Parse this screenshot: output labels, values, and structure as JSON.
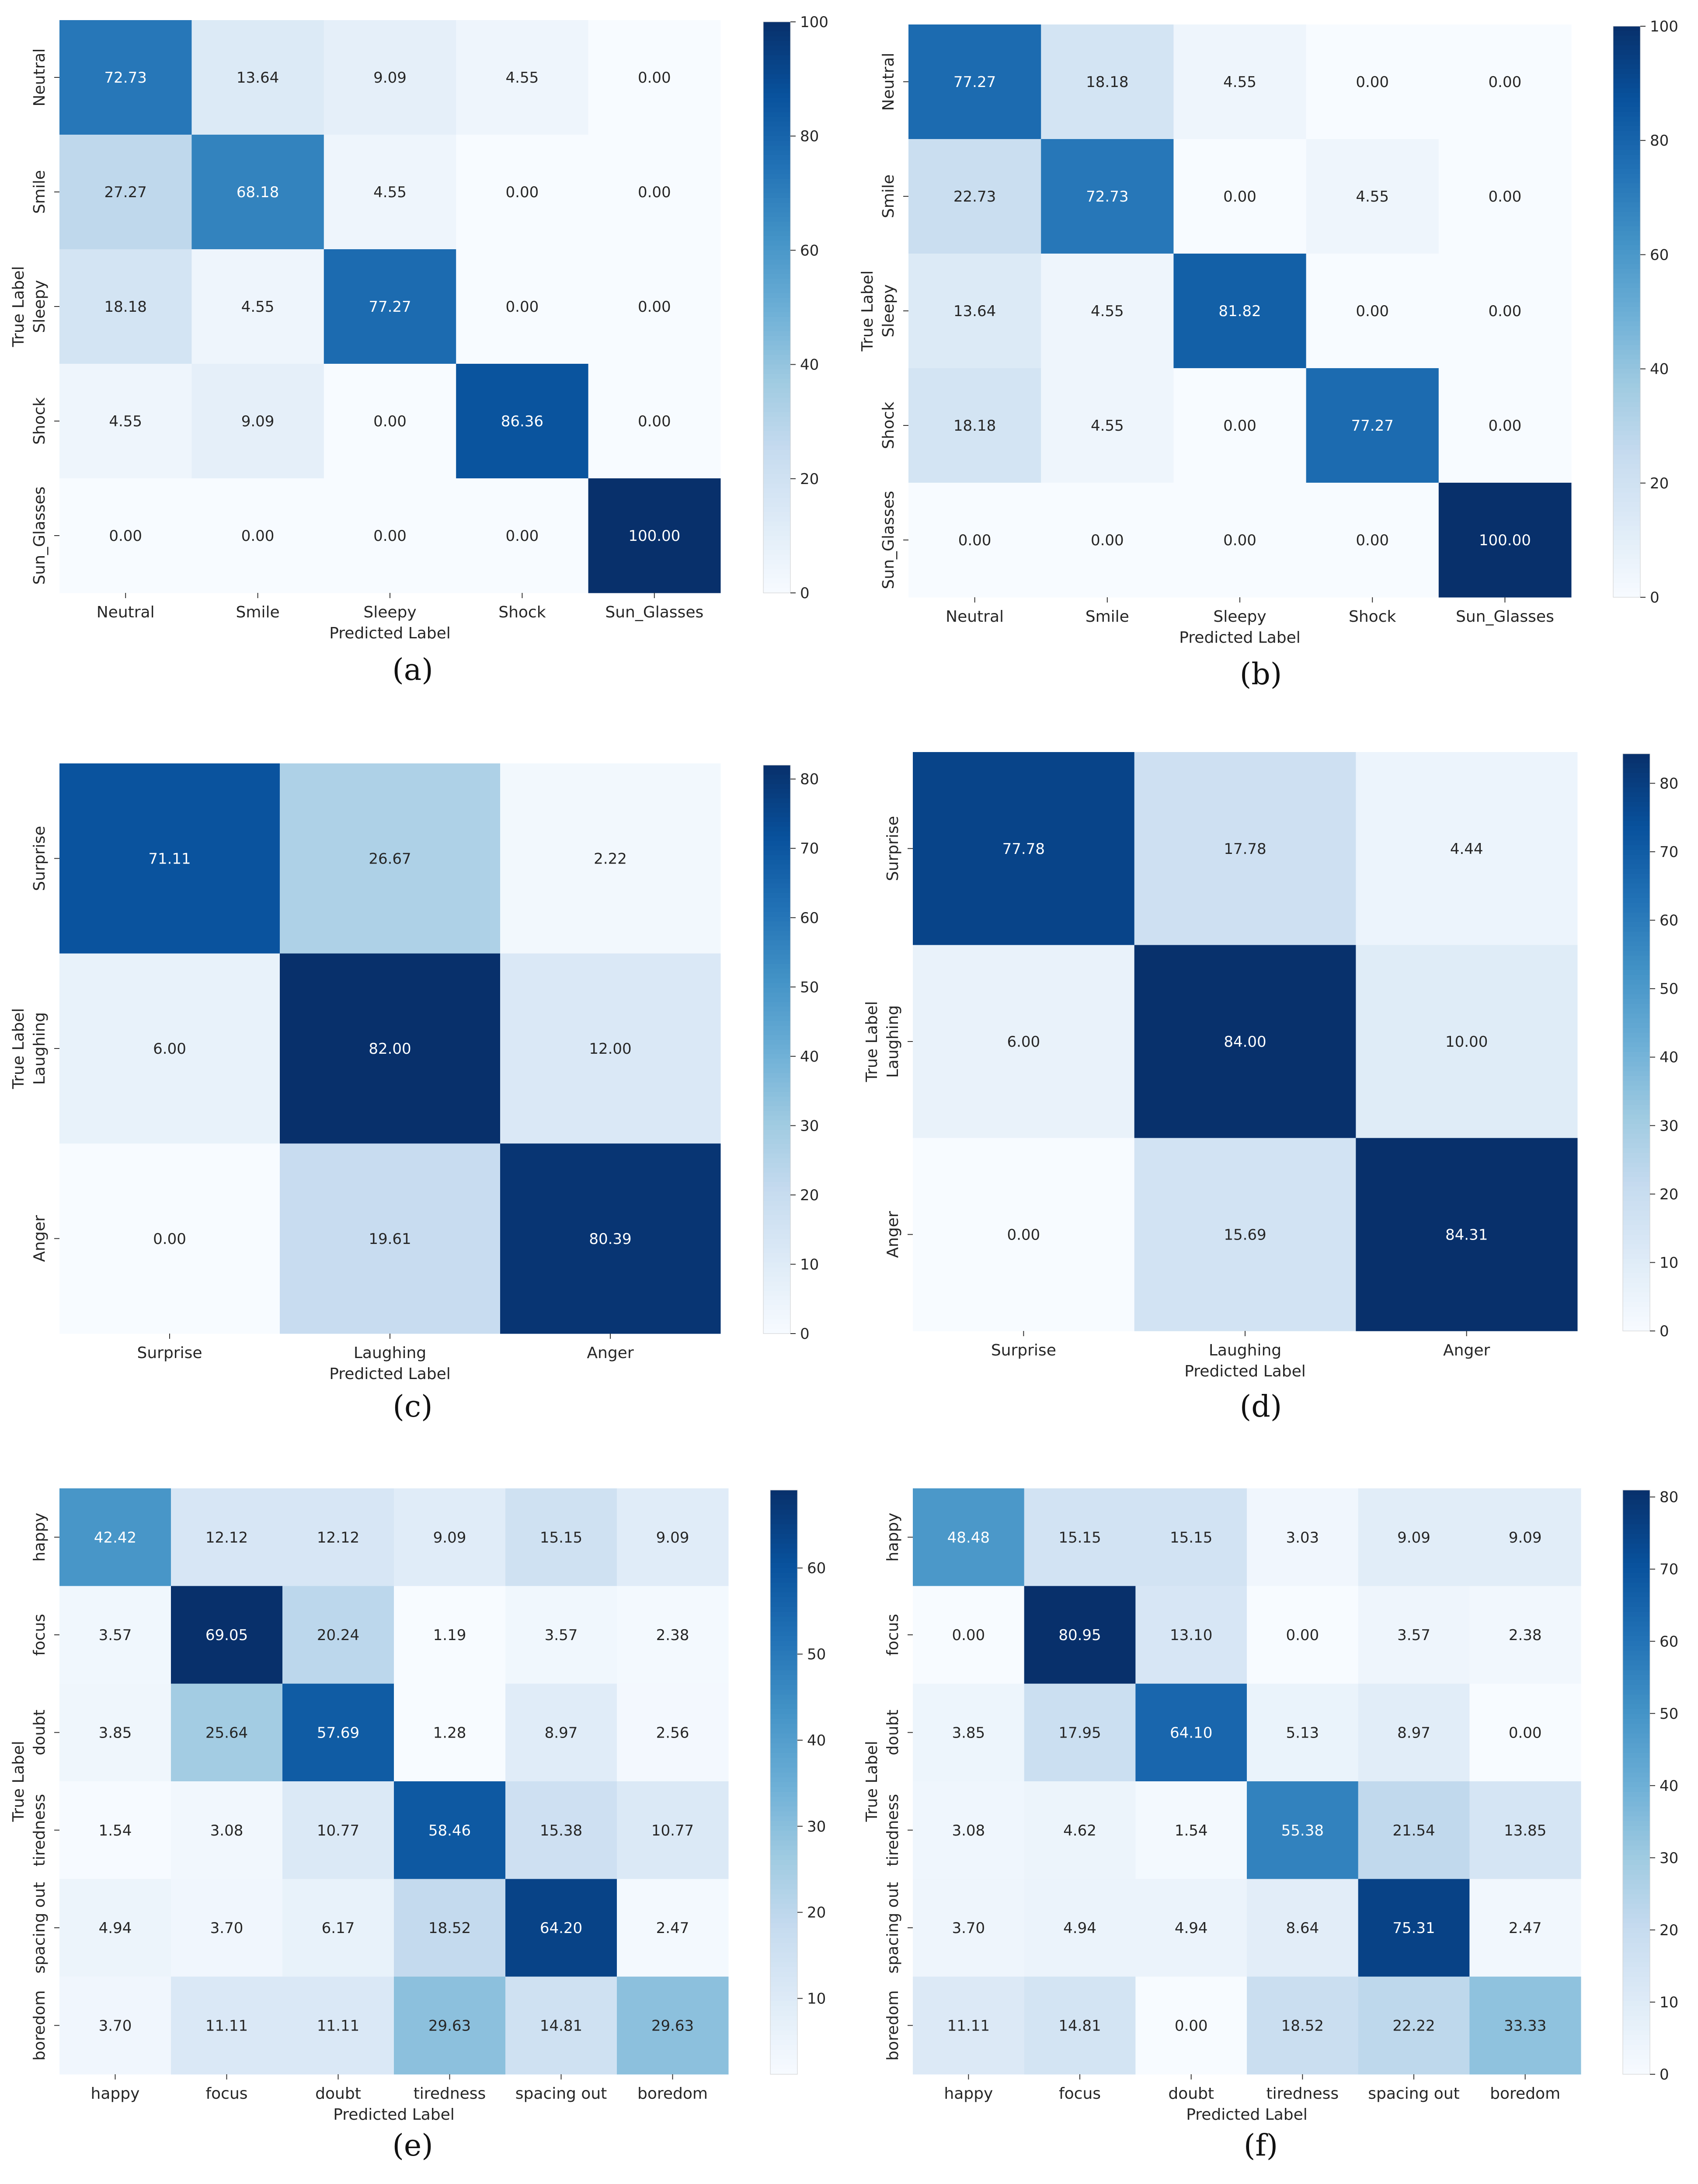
{
  "panel_labels": [
    "(a)",
    "(b)",
    "(c)",
    "(d)",
    "(e)",
    "(f)"
  ],
  "common": {
    "xlabel": "Predicted Label",
    "ylabel": "True Label",
    "colormap": "Blues"
  },
  "chart_data": [
    {
      "id": "a",
      "type": "heatmap",
      "caption": "(a)",
      "xlabel": "Predicted Label",
      "ylabel": "True Label",
      "categories": [
        "Neutral",
        "Smile",
        "Sleepy",
        "Shock",
        "Sun_Glasses"
      ],
      "values": [
        [
          72.73,
          13.64,
          9.09,
          4.55,
          0.0
        ],
        [
          27.27,
          68.18,
          4.55,
          0.0,
          0.0
        ],
        [
          18.18,
          4.55,
          77.27,
          0.0,
          0.0
        ],
        [
          4.55,
          9.09,
          0.0,
          86.36,
          0.0
        ],
        [
          0.0,
          0.0,
          0.0,
          0.0,
          100.0
        ]
      ],
      "vmin": 0,
      "vmax": 100,
      "colorbar_ticks": [
        0,
        20,
        40,
        60,
        80,
        100
      ]
    },
    {
      "id": "b",
      "type": "heatmap",
      "caption": "(b)",
      "xlabel": "Predicted Label",
      "ylabel": "True Label",
      "categories": [
        "Neutral",
        "Smile",
        "Sleepy",
        "Shock",
        "Sun_Glasses"
      ],
      "values": [
        [
          77.27,
          18.18,
          4.55,
          0.0,
          0.0
        ],
        [
          22.73,
          72.73,
          0.0,
          4.55,
          0.0
        ],
        [
          13.64,
          4.55,
          81.82,
          0.0,
          0.0
        ],
        [
          18.18,
          4.55,
          0.0,
          77.27,
          0.0
        ],
        [
          0.0,
          0.0,
          0.0,
          0.0,
          100.0
        ]
      ],
      "vmin": 0,
      "vmax": 100,
      "colorbar_ticks": [
        0,
        20,
        40,
        60,
        80,
        100
      ]
    },
    {
      "id": "c",
      "type": "heatmap",
      "caption": "(c)",
      "xlabel": "Predicted Label",
      "ylabel": "True Label",
      "categories": [
        "Surprise",
        "Laughing",
        "Anger"
      ],
      "values": [
        [
          71.11,
          26.67,
          2.22
        ],
        [
          6.0,
          82.0,
          12.0
        ],
        [
          0.0,
          19.61,
          80.39
        ]
      ],
      "vmin": 0,
      "vmax": 82,
      "colorbar_ticks": [
        0,
        10,
        20,
        30,
        40,
        50,
        60,
        70,
        80
      ]
    },
    {
      "id": "d",
      "type": "heatmap",
      "caption": "(d)",
      "xlabel": "Predicted Label",
      "ylabel": "True Label",
      "categories": [
        "Surprise",
        "Laughing",
        "Anger"
      ],
      "values": [
        [
          77.78,
          17.78,
          4.44
        ],
        [
          6.0,
          84.0,
          10.0
        ],
        [
          0.0,
          15.69,
          84.31
        ]
      ],
      "vmin": 0,
      "vmax": 84.31,
      "colorbar_ticks": [
        0,
        10,
        20,
        30,
        40,
        50,
        60,
        70,
        80
      ]
    },
    {
      "id": "e",
      "type": "heatmap",
      "caption": "(e)",
      "xlabel": "Predicted Label",
      "ylabel": "True Label",
      "categories": [
        "happy",
        "focus",
        "doubt",
        "tiredness",
        "spacing out",
        "boredom"
      ],
      "values": [
        [
          42.42,
          12.12,
          12.12,
          9.09,
          15.15,
          9.09
        ],
        [
          3.57,
          69.05,
          20.24,
          1.19,
          3.57,
          2.38
        ],
        [
          3.85,
          25.64,
          57.69,
          1.28,
          8.97,
          2.56
        ],
        [
          1.54,
          3.08,
          10.77,
          58.46,
          15.38,
          10.77
        ],
        [
          4.94,
          3.7,
          6.17,
          18.52,
          64.2,
          2.47
        ],
        [
          3.7,
          11.11,
          11.11,
          29.63,
          14.81,
          29.63
        ]
      ],
      "vmin": 1.19,
      "vmax": 69.05,
      "colorbar_ticks": [
        10,
        20,
        30,
        40,
        50,
        60
      ]
    },
    {
      "id": "f",
      "type": "heatmap",
      "caption": "(f)",
      "xlabel": "Predicted Label",
      "ylabel": "True Label",
      "categories": [
        "happy",
        "focus",
        "doubt",
        "tiredness",
        "spacing out",
        "boredom"
      ],
      "values": [
        [
          48.48,
          15.15,
          15.15,
          3.03,
          9.09,
          9.09
        ],
        [
          0.0,
          80.95,
          13.1,
          0.0,
          3.57,
          2.38
        ],
        [
          3.85,
          17.95,
          64.1,
          5.13,
          8.97,
          0.0
        ],
        [
          3.08,
          4.62,
          1.54,
          55.38,
          21.54,
          13.85
        ],
        [
          3.7,
          4.94,
          4.94,
          8.64,
          75.31,
          2.47
        ],
        [
          11.11,
          14.81,
          0.0,
          18.52,
          22.22,
          33.33
        ]
      ],
      "vmin": 0,
      "vmax": 80.95,
      "colorbar_ticks": [
        0,
        10,
        20,
        30,
        40,
        50,
        60,
        70,
        80
      ]
    }
  ]
}
